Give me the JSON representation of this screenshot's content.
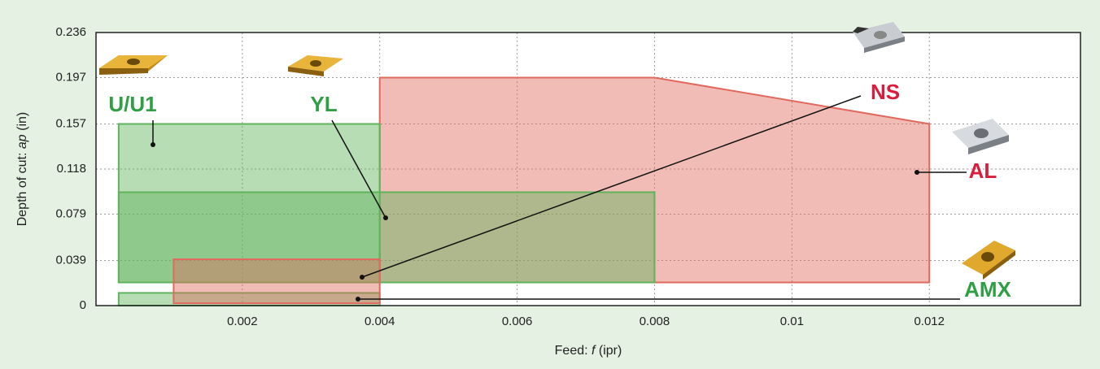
{
  "chart_data": {
    "type": "region",
    "xlabel": [
      "Feed: ",
      "f",
      " (ipr)"
    ],
    "ylabel": [
      "Depth of cut: ",
      "ap",
      " (in)"
    ],
    "xlim": [
      -0.00013,
      0.0142
    ],
    "ylim": [
      0,
      0.236
    ],
    "xticks": [
      0.002,
      0.004,
      0.006,
      0.008,
      0.01,
      {
        "value": 0.012,
        "label": "0.012"
      }
    ],
    "yticks": [
      0,
      0.039,
      0.079,
      0.118,
      0.157,
      0.197,
      0.236
    ],
    "grid": true,
    "regions": [
      {
        "name": "AL",
        "color": "#e06a5e",
        "label_color": "#d81e3c",
        "x": [
          0.004,
          0.004,
          0.008,
          0.012,
          0.012
        ],
        "y": [
          0.02,
          0.197,
          0.197,
          0.157,
          0.02
        ]
      },
      {
        "name": "U/U1",
        "color": "#5fb35a",
        "label_color": "#2f9e44",
        "x": [
          0.0002,
          0.0002,
          0.004,
          0.004
        ],
        "y": [
          0.02,
          0.157,
          0.157,
          0.02
        ]
      },
      {
        "name": "YL",
        "color": "#5fb35a",
        "label_color": "#2f9e44",
        "x": [
          0.0002,
          0.0002,
          0.008,
          0.008
        ],
        "y": [
          0.02,
          0.098,
          0.098,
          0.02
        ]
      },
      {
        "name": "AMX",
        "color": "#5fb35a",
        "label_color": "#2f9e44",
        "x": [
          0.0002,
          0.0002,
          0.004,
          0.004
        ],
        "y": [
          0,
          0.011,
          0.011,
          0
        ]
      },
      {
        "name": "NS",
        "color": "#e06a5e",
        "label_color": "#d81e3c",
        "x": [
          0.001,
          0.001,
          0.004,
          0.004
        ],
        "y": [
          0.002,
          0.04,
          0.04,
          0.002
        ]
      }
    ]
  }
}
